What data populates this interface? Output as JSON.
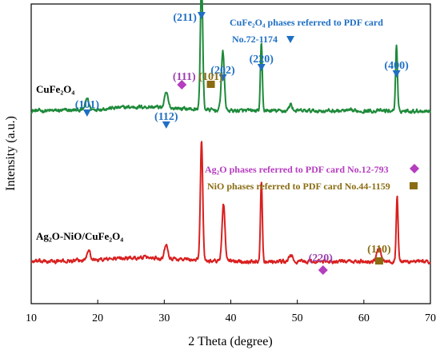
{
  "chart_data": {
    "type": "line",
    "xlabel": "2 Theta (degree)",
    "ylabel": "Intensity (a.u.)",
    "xlim": [
      10,
      70
    ],
    "xticks": [
      10,
      20,
      30,
      40,
      50,
      60,
      70
    ],
    "yticks": false,
    "grid": false,
    "series": [
      {
        "name": "CuFe2O4",
        "color": "#1e8a3a",
        "baseline": 0.125,
        "noise": 0.01,
        "peaks": [
          {
            "x": 18.4,
            "h": 0.035,
            "w": 0.25
          },
          {
            "x": 30.3,
            "h": 0.045,
            "w": 0.25
          },
          {
            "x": 35.6,
            "h": 0.395,
            "w": 0.18
          },
          {
            "x": 38.8,
            "h": 0.18,
            "w": 0.22
          },
          {
            "x": 44.6,
            "h": 0.205,
            "w": 0.14
          },
          {
            "x": 49.0,
            "h": 0.02,
            "w": 0.25
          },
          {
            "x": 64.9,
            "h": 0.2,
            "w": 0.14
          }
        ]
      },
      {
        "name": "Ag2O-NiO/CuFe2O4",
        "color": "#d92020",
        "baseline": -0.335,
        "noise": 0.01,
        "peaks": [
          {
            "x": 18.6,
            "h": 0.035,
            "w": 0.25
          },
          {
            "x": 30.3,
            "h": 0.045,
            "w": 0.25
          },
          {
            "x": 35.6,
            "h": 0.365,
            "w": 0.18
          },
          {
            "x": 38.9,
            "h": 0.175,
            "w": 0.22
          },
          {
            "x": 44.6,
            "h": 0.25,
            "w": 0.14
          },
          {
            "x": 49.0,
            "h": 0.02,
            "w": 0.25
          },
          {
            "x": 62.3,
            "h": 0.045,
            "w": 0.3
          },
          {
            "x": 65.0,
            "h": 0.2,
            "w": 0.14
          }
        ]
      }
    ],
    "text": {
      "cufe2o4_label": "CuFe₂O₄",
      "composite_label": "Ag₂O-NiO/CuFe₂O₄",
      "cufe_phase_note_line1": "CuFe₂O₄ phases referred to PDF card",
      "cufe_phase_note_line2": "No.72-1174",
      "ag2o_phase_note": "Ag₂O phases referred to PDF card No.12-793",
      "nio_phase_note": "NiO phases referred to PDF card No.44-1159"
    },
    "annotations": [
      {
        "text": "(211)",
        "x": 35.6,
        "class": "peak-label-blue",
        "marker": "triangle",
        "color": "#1f6fc4"
      },
      {
        "text": "(202)",
        "x": 38.8,
        "class": "peak-label-blue",
        "marker": "triangle",
        "color": "#1f6fc4"
      },
      {
        "text": "(220)",
        "x": 44.6,
        "class": "peak-label-blue",
        "marker": "triangle",
        "color": "#1f6fc4"
      },
      {
        "text": "(400)",
        "x": 64.9,
        "class": "peak-label-blue",
        "marker": "triangle",
        "color": "#1f6fc4"
      },
      {
        "text": "(101)",
        "x": 18.4,
        "class": "peak-label-blue",
        "marker": "triangle",
        "color": "#1f6fc4"
      },
      {
        "text": "(112)",
        "x": 30.3,
        "class": "peak-label-blue",
        "marker": "triangle",
        "color": "#1f6fc4"
      },
      {
        "text": "(111)",
        "x": 33.0,
        "class": "peak-label-purple",
        "marker": "diamond",
        "color": "#b53dbf"
      },
      {
        "text": "(220)",
        "x": 53.5,
        "class": "peak-label-purple",
        "marker": "diamond",
        "color": "#b53dbf"
      },
      {
        "text": "(101)",
        "x": 37.0,
        "class": "peak-label-olive",
        "marker": "square",
        "color": "#8a6d12"
      },
      {
        "text": "(110)",
        "x": 62.3,
        "class": "peak-label-olive",
        "marker": "square",
        "color": "#8a6d12"
      }
    ],
    "legend_markers": {
      "blue_triangle": "#1f6fc4",
      "purple_diamond": "#b53dbf",
      "olive_square": "#8a6d12"
    }
  }
}
